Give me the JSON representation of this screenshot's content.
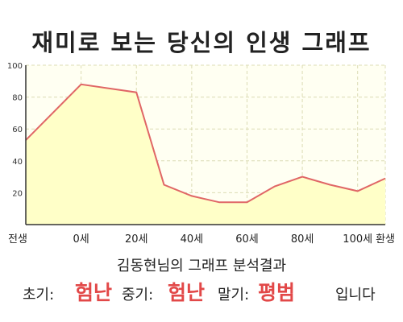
{
  "page": {
    "title": "재미로 보는 당신의 인생 그래프"
  },
  "chart_data": {
    "type": "area",
    "categories": [
      "전생",
      "0세",
      "20세",
      "40세",
      "60세",
      "80세",
      "100세",
      "환생"
    ],
    "x": [
      -20,
      0,
      20,
      30,
      40,
      50,
      60,
      70,
      80,
      90,
      100,
      110
    ],
    "values": [
      53,
      88,
      83,
      25,
      18,
      14,
      14,
      24,
      30,
      25,
      21,
      29
    ],
    "x_ticks": [
      -20,
      0,
      20,
      40,
      60,
      80,
      100,
      110
    ],
    "ylim": [
      0,
      100
    ],
    "y_ticks": [
      20,
      40,
      60,
      80,
      100
    ],
    "xlim": [
      -20,
      110
    ],
    "grid": true,
    "colors": {
      "line": "#e06666",
      "fill": "#ffffc8",
      "plot_bg": "#fffff2",
      "grid": "#dcdcb4",
      "highlight": "#e24848"
    }
  },
  "analysis": {
    "title": "김동현님의 그래프 분석결과",
    "early_label": "초기:",
    "early_value": "험난",
    "middle_label": "중기:",
    "middle_value": "험난",
    "late_label": "말기:",
    "late_value": "평범",
    "ending": "입니다"
  }
}
